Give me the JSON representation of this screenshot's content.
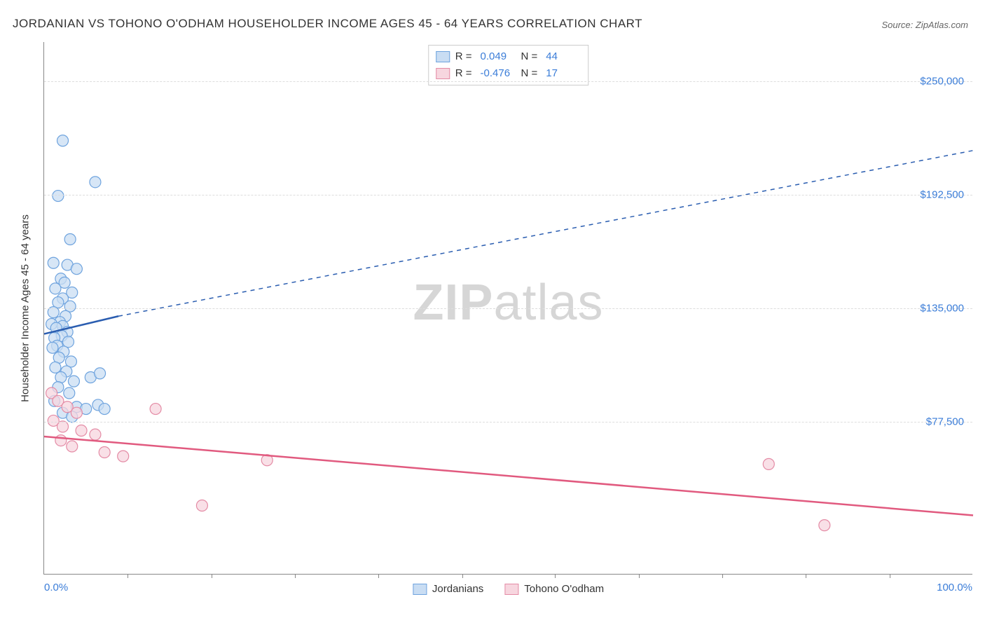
{
  "title": "JORDANIAN VS TOHONO O'ODHAM HOUSEHOLDER INCOME AGES 45 - 64 YEARS CORRELATION CHART",
  "source": "Source: ZipAtlas.com",
  "watermark_a": "ZIP",
  "watermark_b": "atlas",
  "chart": {
    "type": "scatter",
    "y_axis_label": "Householder Income Ages 45 - 64 years",
    "xlim": [
      0,
      100
    ],
    "ylim": [
      0,
      270000
    ],
    "x_tick_labels": [
      {
        "pos": 0,
        "label": "0.0%",
        "align": "left"
      },
      {
        "pos": 100,
        "label": "100.0%",
        "align": "right"
      }
    ],
    "x_minor_ticks": [
      9,
      18,
      27,
      36,
      45,
      55,
      64,
      73,
      82,
      91
    ],
    "y_tick_labels": [
      {
        "value": 77500,
        "label": "$77,500"
      },
      {
        "value": 135000,
        "label": "$135,000"
      },
      {
        "value": 192500,
        "label": "$192,500"
      },
      {
        "value": 250000,
        "label": "$250,000"
      }
    ],
    "grid_color": "#dddddd",
    "background_color": "#ffffff",
    "marker_radius": 8,
    "marker_stroke_width": 1.2,
    "line_width_solid": 2.5,
    "line_width_dash": 1.5,
    "dash_pattern": "6,6",
    "series": [
      {
        "name": "Jordanians",
        "color_fill": "#c9ddf3",
        "color_stroke": "#6ea3de",
        "color_line": "#2a5db0",
        "stats": {
          "R": "0.049",
          "N": "44"
        },
        "points": [
          [
            2.0,
            220000
          ],
          [
            5.5,
            199000
          ],
          [
            1.5,
            192000
          ],
          [
            2.8,
            170000
          ],
          [
            1.0,
            158000
          ],
          [
            2.5,
            157000
          ],
          [
            3.5,
            155000
          ],
          [
            1.8,
            150000
          ],
          [
            2.2,
            148000
          ],
          [
            1.2,
            145000
          ],
          [
            3.0,
            143000
          ],
          [
            2.0,
            140000
          ],
          [
            1.5,
            138000
          ],
          [
            2.8,
            136000
          ],
          [
            1.0,
            133000
          ],
          [
            2.3,
            131000
          ],
          [
            1.7,
            128000
          ],
          [
            0.8,
            127000
          ],
          [
            2.0,
            126000
          ],
          [
            1.3,
            125000
          ],
          [
            2.5,
            123000
          ],
          [
            1.9,
            121000
          ],
          [
            1.1,
            120000
          ],
          [
            2.6,
            118000
          ],
          [
            1.4,
            116000
          ],
          [
            0.9,
            115000
          ],
          [
            2.1,
            113000
          ],
          [
            1.6,
            110000
          ],
          [
            2.9,
            108000
          ],
          [
            1.2,
            105000
          ],
          [
            2.4,
            103000
          ],
          [
            1.8,
            100000
          ],
          [
            3.2,
            98000
          ],
          [
            5.0,
            100000
          ],
          [
            6.0,
            102000
          ],
          [
            1.5,
            95000
          ],
          [
            2.7,
            92000
          ],
          [
            1.1,
            88000
          ],
          [
            3.5,
            85000
          ],
          [
            2.0,
            82000
          ],
          [
            4.5,
            84000
          ],
          [
            5.8,
            86000
          ],
          [
            6.5,
            84000
          ],
          [
            3.0,
            80000
          ]
        ],
        "trend": {
          "x1": 0,
          "y1": 122000,
          "x2": 8,
          "y2": 131000,
          "x2_dash": 100,
          "y2_dash": 215000
        }
      },
      {
        "name": "Tohono O'odham",
        "color_fill": "#f7d6df",
        "color_stroke": "#e48ba5",
        "color_line": "#e15a7f",
        "stats": {
          "R": "-0.476",
          "N": "17"
        },
        "points": [
          [
            0.8,
            92000
          ],
          [
            1.5,
            88000
          ],
          [
            2.5,
            85000
          ],
          [
            3.5,
            82000
          ],
          [
            1.0,
            78000
          ],
          [
            2.0,
            75000
          ],
          [
            4.0,
            73000
          ],
          [
            5.5,
            71000
          ],
          [
            1.8,
            68000
          ],
          [
            3.0,
            65000
          ],
          [
            6.5,
            62000
          ],
          [
            8.5,
            60000
          ],
          [
            12.0,
            84000
          ],
          [
            24.0,
            58000
          ],
          [
            17.0,
            35000
          ],
          [
            78.0,
            56000
          ],
          [
            84.0,
            25000
          ]
        ],
        "trend": {
          "x1": 0,
          "y1": 70000,
          "x2": 100,
          "y2": 30000
        }
      }
    ]
  },
  "legend_labels": {
    "R": "R =",
    "N": "N ="
  }
}
